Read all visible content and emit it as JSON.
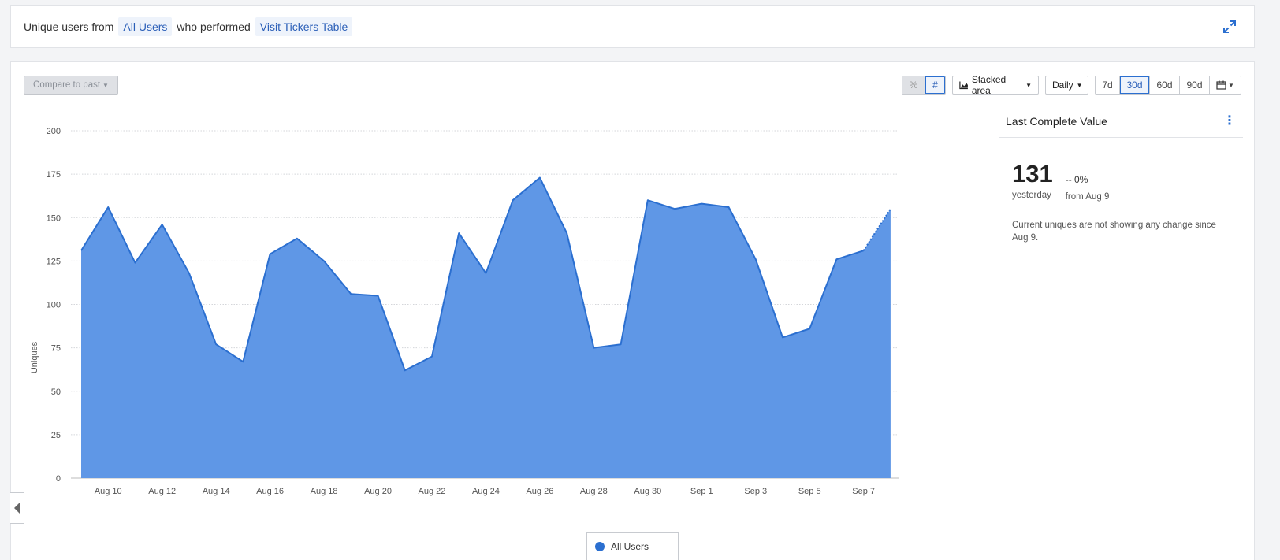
{
  "query": {
    "prefix": "Unique users from",
    "segment": "All Users",
    "middle": "who performed",
    "event": "Visit Tickers Table"
  },
  "toolbar": {
    "compare_label": "Compare to past",
    "percent_label": "%",
    "count_label": "#",
    "chart_type_label": "Stacked area",
    "interval_label": "Daily",
    "ranges": [
      "7d",
      "30d",
      "60d",
      "90d"
    ],
    "active_range": "30d"
  },
  "side_panel": {
    "title": "Last Complete Value",
    "value": "131",
    "value_sub": "yesterday",
    "delta": "-- 0%",
    "delta_sub": "from Aug 9",
    "description": "Current uniques are not showing any change since Aug 9."
  },
  "legend": {
    "label": "All Users"
  },
  "colors": {
    "series_fill": "#5f97e6",
    "series_stroke": "#2b6fd0",
    "accent": "#2b5fb8"
  },
  "chart_data": {
    "type": "area",
    "ylabel": "Uniques",
    "xlabel": "",
    "ylim": [
      0,
      200
    ],
    "y_ticks": [
      0,
      25,
      50,
      75,
      100,
      125,
      150,
      175,
      200
    ],
    "x_tick_labels": [
      "Aug 10",
      "Aug 12",
      "Aug 14",
      "Aug 16",
      "Aug 18",
      "Aug 20",
      "Aug 22",
      "Aug 24",
      "Aug 26",
      "Aug 28",
      "Aug 30",
      "Sep 1",
      "Sep 3",
      "Sep 5",
      "Sep 7"
    ],
    "x": [
      "Aug 9",
      "Aug 10",
      "Aug 11",
      "Aug 12",
      "Aug 13",
      "Aug 14",
      "Aug 15",
      "Aug 16",
      "Aug 17",
      "Aug 18",
      "Aug 19",
      "Aug 20",
      "Aug 21",
      "Aug 22",
      "Aug 23",
      "Aug 24",
      "Aug 25",
      "Aug 26",
      "Aug 27",
      "Aug 28",
      "Aug 29",
      "Aug 30",
      "Aug 31",
      "Sep 1",
      "Sep 2",
      "Sep 3",
      "Sep 4",
      "Sep 5",
      "Sep 6",
      "Sep 7",
      "Sep 8"
    ],
    "series": [
      {
        "name": "All Users",
        "values": [
          131,
          156,
          124,
          146,
          118,
          77,
          67,
          129,
          138,
          125,
          106,
          105,
          62,
          70,
          141,
          118,
          160,
          173,
          141,
          75,
          77,
          160,
          155,
          158,
          156,
          126,
          81,
          86,
          126,
          131,
          155
        ]
      }
    ],
    "incomplete_last_point": true,
    "grid": true,
    "legend_position": "bottom-center"
  }
}
